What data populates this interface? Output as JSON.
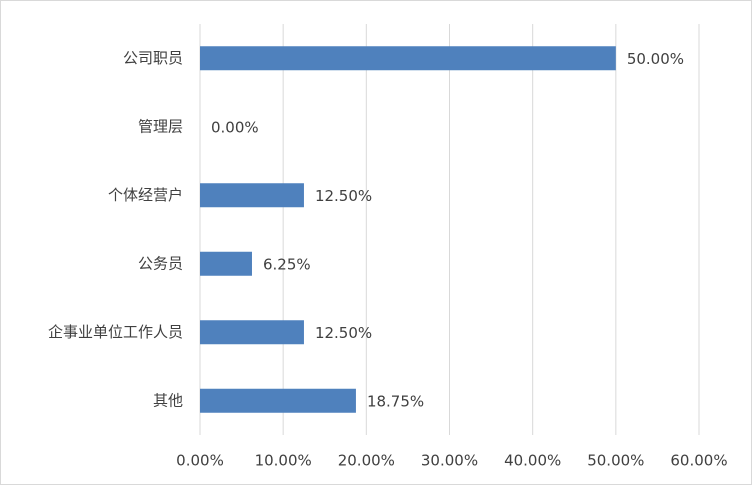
{
  "chart_data": {
    "type": "barh",
    "categories": [
      "公司职员",
      "管理层",
      "个体经营户",
      "公务员",
      "企事业单位工作人员",
      "其他"
    ],
    "values": [
      50,
      0,
      12.5,
      6.25,
      12.5,
      18.75
    ],
    "value_labels": [
      "50.00%",
      "0.00%",
      "12.50%",
      "6.25%",
      "12.50%",
      "18.75%"
    ],
    "color": "#4f81bd",
    "xlim": [
      0,
      60
    ],
    "xticks": [
      {
        "value": 0,
        "label": "0.00%"
      },
      {
        "value": 10,
        "label": "10.00%"
      },
      {
        "value": 20,
        "label": "20.00%"
      },
      {
        "value": 30,
        "label": "30.00%"
      },
      {
        "value": 40,
        "label": "40.00%"
      },
      {
        "value": 50,
        "label": "50.00%"
      },
      {
        "value": 60,
        "label": "60.00%"
      }
    ],
    "grid": true
  }
}
